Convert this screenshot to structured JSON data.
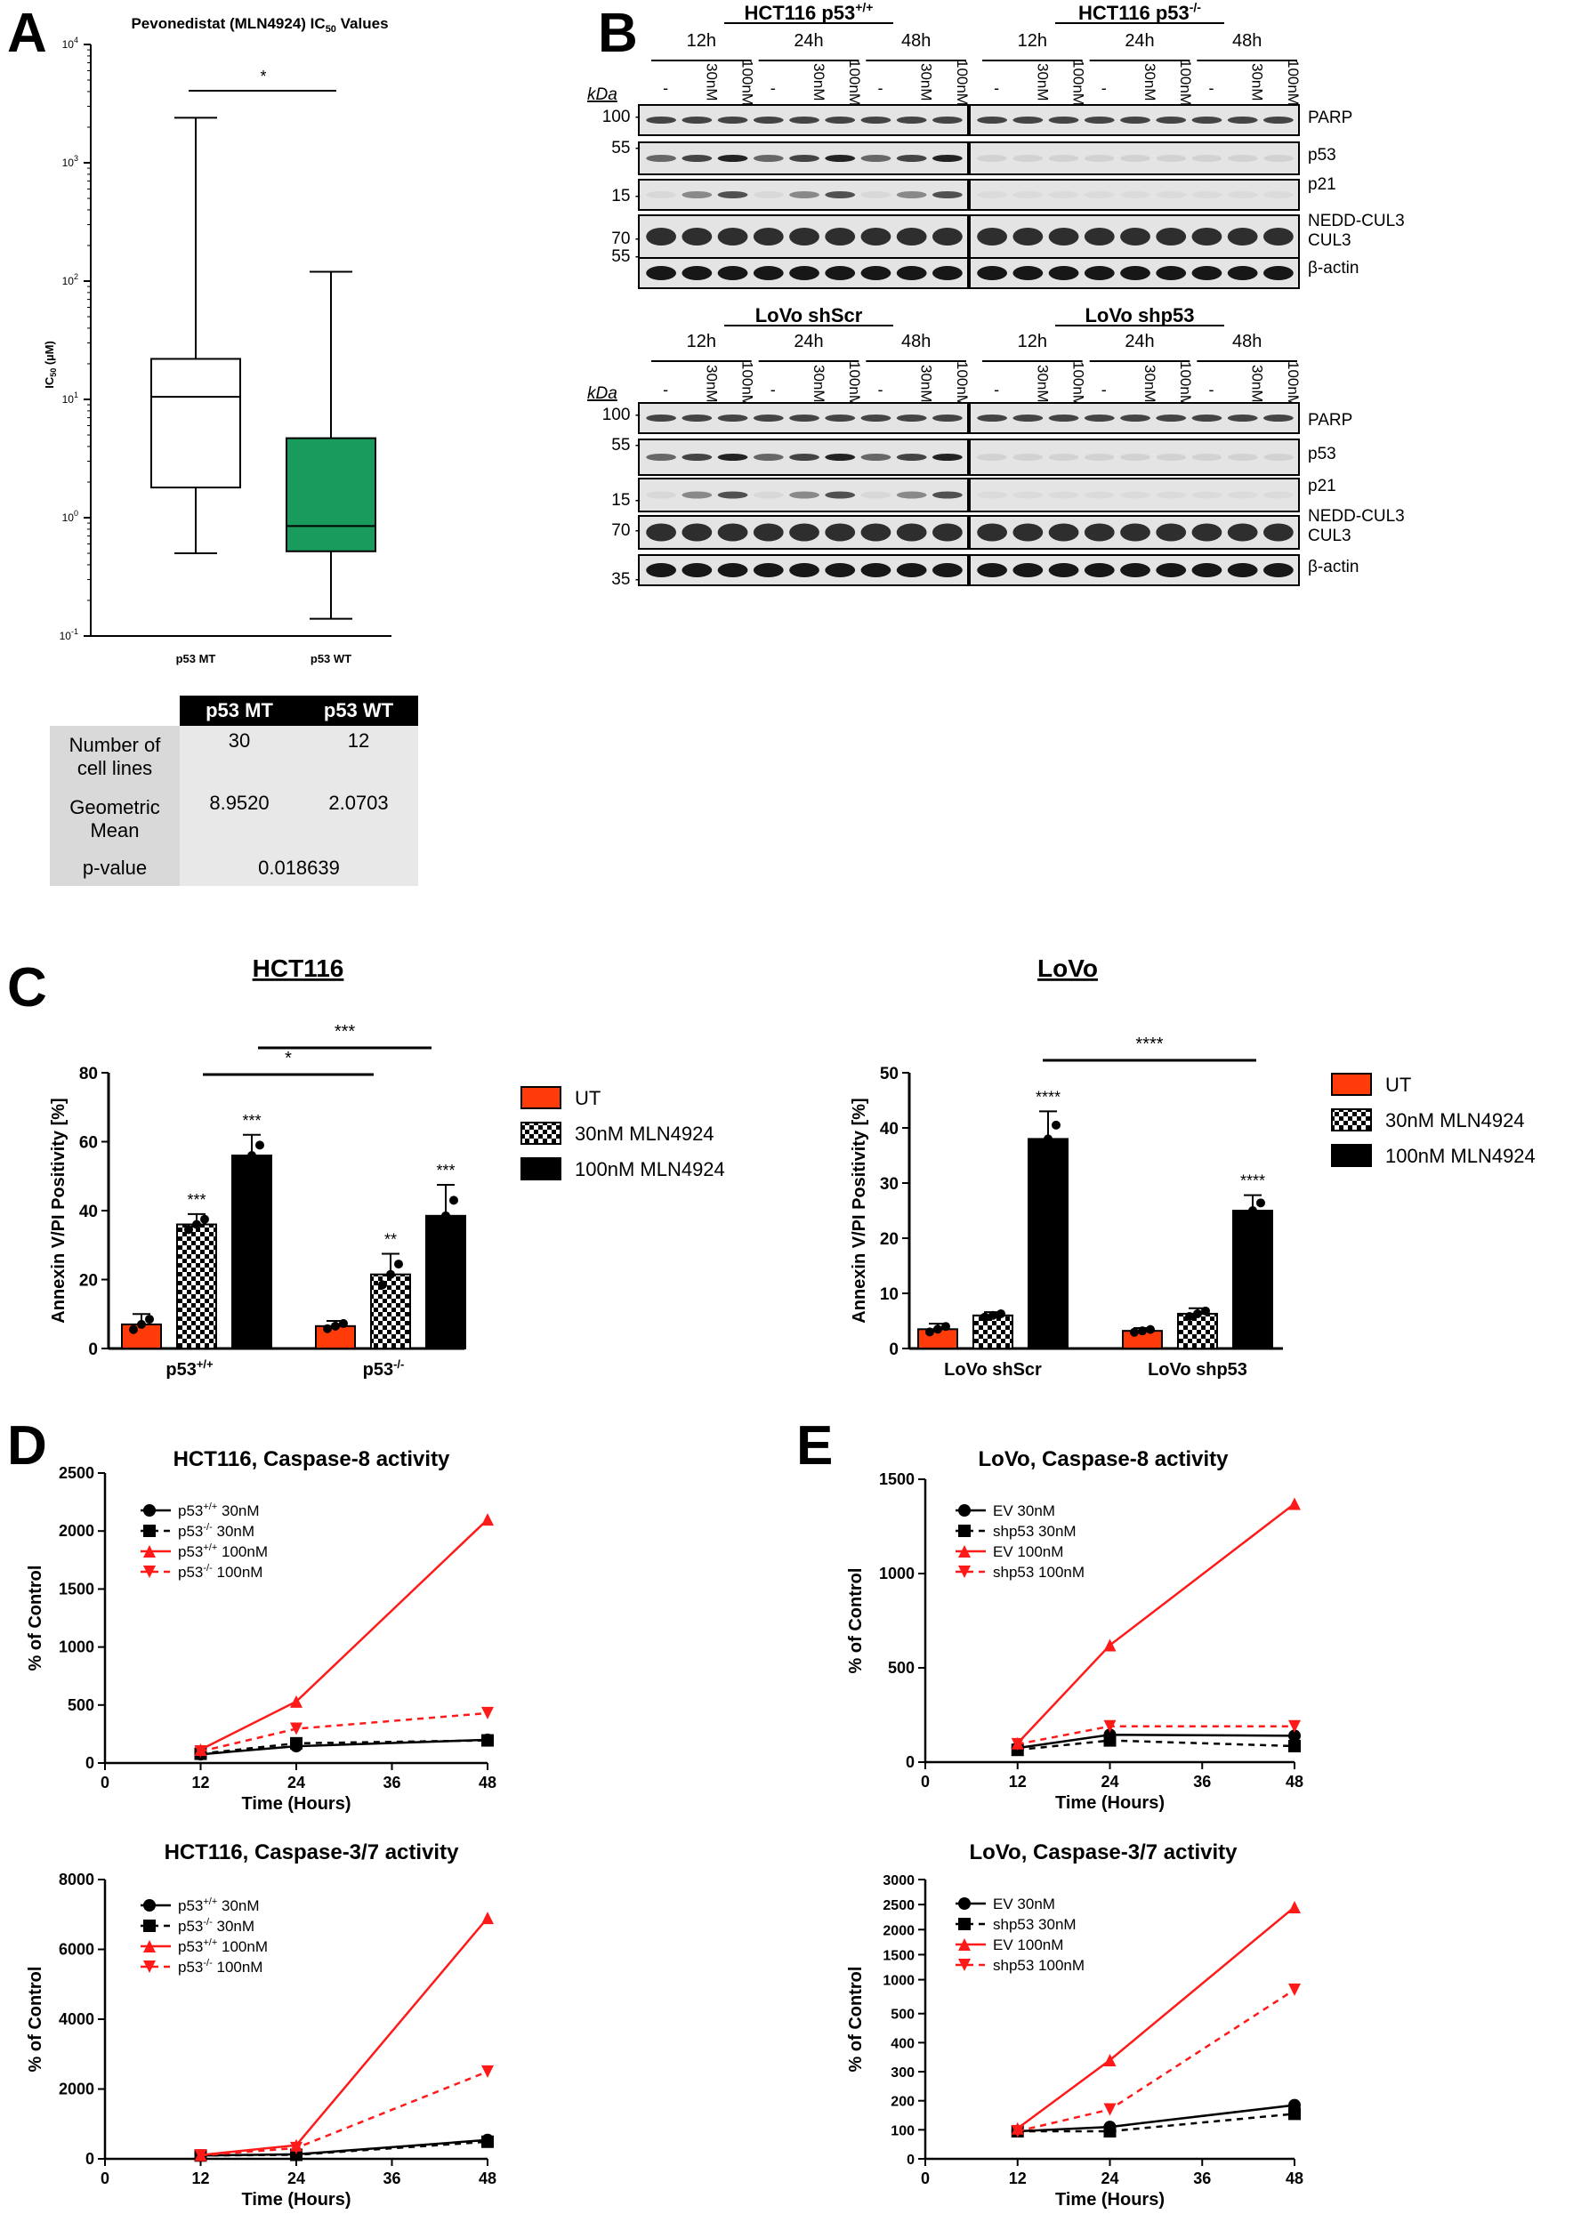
{
  "panels": {
    "A": "A",
    "B": "B",
    "C": "C",
    "D": "D",
    "E": "E"
  },
  "panelA": {
    "title": "Pevonedistat (MLN4924) IC",
    "title_sub": "50",
    "title_tail": " Values",
    "ylabel": "IC",
    "ylabel_sub": "50",
    "ylabel_tail": " (µM)",
    "sig": "*",
    "y_ticks": [
      "10",
      "10",
      "10",
      "10",
      "10",
      "10"
    ],
    "y_exps": [
      "4",
      "3",
      "2",
      "1",
      "0",
      "-1"
    ],
    "groups": [
      "p53 MT",
      "p53 WT"
    ],
    "boxes": [
      {
        "name": "p53 MT",
        "min": 0.5,
        "q1": 1.8,
        "median": 10.5,
        "q3": 22,
        "max": 2400,
        "color": "#ffffff"
      },
      {
        "name": "p53 WT",
        "min": 0.14,
        "q1": 0.52,
        "median": 0.85,
        "q3": 4.7,
        "max": 120,
        "color": "#1a9b5e"
      }
    ],
    "table": {
      "headers": [
        "p53 MT",
        "p53 WT"
      ],
      "rows": [
        {
          "label": "Number of cell lines",
          "mt": "30",
          "wt": "12"
        },
        {
          "label": "Geometric Mean",
          "mt": "8.9520",
          "wt": "2.0703"
        }
      ],
      "pvalue_label": "p-value",
      "pvalue": "0.018639"
    }
  },
  "panelB": {
    "kda": "kDa",
    "dash": "-",
    "lines": [
      {
        "left": "HCT116 p53",
        "left_sup": "+/+",
        "right": "HCT116 p53",
        "right_sup": "-/-",
        "markers": [
          "100 -",
          "55 -",
          "15 -",
          "70 -",
          "55 -"
        ],
        "proteins": [
          "PARP",
          "p53",
          "p21",
          "NEDD-CUL3",
          "CUL3",
          "β-actin"
        ]
      },
      {
        "left": "LoVo shScr",
        "left_sup": "",
        "right": "LoVo shp53",
        "right_sup": "",
        "markers": [
          "100 -",
          "55 -",
          "15 -",
          "70 -",
          "35 -"
        ],
        "proteins": [
          "PARP",
          "p53",
          "p21",
          "NEDD-CUL3",
          "CUL3",
          "β-actin"
        ]
      }
    ],
    "timepoints": [
      "12h",
      "24h",
      "48h"
    ],
    "doses": [
      "30nM",
      "100nM"
    ]
  },
  "panelC": {
    "hct": {
      "title": "HCT116",
      "ylabel": "Annexin V/PI Positivity [%]",
      "yticks": [
        "0",
        "20",
        "40",
        "60",
        "80"
      ],
      "groups": [
        "p53",
        "p53"
      ],
      "group_sups": [
        "+/+",
        "-/-"
      ],
      "values": [
        [
          7,
          36,
          56
        ],
        [
          6.5,
          21.5,
          38.5
        ]
      ],
      "errors": [
        [
          3,
          3,
          6
        ],
        [
          1.5,
          6,
          9
        ]
      ],
      "stars": [
        [
          "",
          "***",
          "***"
        ],
        [
          "",
          "**",
          "***"
        ]
      ],
      "brackets": [
        "*",
        "***"
      ]
    },
    "lovo": {
      "title": "LoVo",
      "ylabel": "Annexin V/PI Positivity [%]",
      "yticks": [
        "0",
        "10",
        "20",
        "30",
        "40",
        "50"
      ],
      "groups": [
        "LoVo shScr",
        "LoVo shp53"
      ],
      "values": [
        [
          3.5,
          6,
          38
        ],
        [
          3.2,
          6.3,
          25
        ]
      ],
      "errors": [
        [
          1,
          0.6,
          5
        ],
        [
          0.5,
          1,
          2.8
        ]
      ],
      "stars": [
        [
          "",
          "",
          "****"
        ],
        [
          "",
          "",
          "****"
        ]
      ],
      "brackets": [
        "****"
      ]
    },
    "legend": [
      "UT",
      "30nM MLN4924",
      "100nM MLN4924"
    ]
  },
  "chart_data": [
    {
      "type": "line",
      "title": "HCT116, Caspase-8 activity",
      "xlabel": "Time (Hours)",
      "ylabel": "% of Control",
      "x": [
        12,
        24,
        48
      ],
      "xticks": [
        "0",
        "12",
        "24",
        "36",
        "48"
      ],
      "yticks": [
        "0",
        "500",
        "1000",
        "1500",
        "2000",
        "2500"
      ],
      "ylim": [
        0,
        2500
      ],
      "series": [
        {
          "name": "p53 30nM",
          "sup": "+/+",
          "values": [
            75,
            145,
            200
          ]
        },
        {
          "name": "p53 30nM",
          "sup": "-/-",
          "values": [
            80,
            170,
            195
          ]
        },
        {
          "name": "p53 100nM",
          "sup": "+/+",
          "values": [
            115,
            530,
            2100
          ]
        },
        {
          "name": "p53 100nM",
          "sup": "-/-",
          "values": [
            100,
            295,
            430
          ]
        }
      ]
    },
    {
      "type": "line",
      "title": "HCT116, Caspase-3/7 activity",
      "xlabel": "Time (Hours)",
      "ylabel": "% of Control",
      "x": [
        12,
        24,
        48
      ],
      "xticks": [
        "0",
        "12",
        "24",
        "36",
        "48"
      ],
      "yticks": [
        "0",
        "2000",
        "4000",
        "6000",
        "8000"
      ],
      "ylim": [
        0,
        8000
      ],
      "series": [
        {
          "name": "p53 30nM",
          "sup": "+/+",
          "values": [
            95,
            130,
            540
          ]
        },
        {
          "name": "p53 30nM",
          "sup": "-/-",
          "values": [
            95,
            115,
            490
          ]
        },
        {
          "name": "p53 100nM",
          "sup": "+/+",
          "values": [
            110,
            390,
            6900
          ]
        },
        {
          "name": "p53 100nM",
          "sup": "-/-",
          "values": [
            100,
            310,
            2500
          ]
        }
      ]
    },
    {
      "type": "line",
      "title": "LoVo, Caspase-8 activity",
      "xlabel": "Time (Hours)",
      "ylabel": "% of Control",
      "x": [
        12,
        24,
        48
      ],
      "xticks": [
        "0",
        "12",
        "24",
        "36",
        "48"
      ],
      "yticks": [
        "0",
        "500",
        "1000",
        "1500"
      ],
      "ylim": [
        0,
        1500
      ],
      "series": [
        {
          "name": "EV 30nM",
          "sup": "",
          "values": [
            75,
            145,
            140
          ]
        },
        {
          "name": "shp53 30nM",
          "sup": "",
          "values": [
            65,
            115,
            85
          ]
        },
        {
          "name": "EV 100nM",
          "sup": "",
          "values": [
            100,
            620,
            1370
          ]
        },
        {
          "name": "shp53 100nM",
          "sup": "",
          "values": [
            95,
            190,
            190
          ]
        }
      ]
    },
    {
      "type": "line",
      "title": "LoVo, Caspase-3/7 activity",
      "xlabel": "Time (Hours)",
      "ylabel": "% of Control",
      "x": [
        12,
        24,
        48
      ],
      "xticks": [
        "0",
        "12",
        "24",
        "36",
        "48"
      ],
      "yticks": [
        "0",
        "100",
        "200",
        "300",
        "400",
        "500",
        "1000",
        "1500",
        "2000",
        "2500",
        "3000"
      ],
      "ylim": [
        0,
        3000
      ],
      "broken_axis": true,
      "series": [
        {
          "name": "EV 30nM",
          "sup": "",
          "values": [
            95,
            110,
            185
          ]
        },
        {
          "name": "shp53 30nM",
          "sup": "",
          "values": [
            95,
            95,
            155
          ]
        },
        {
          "name": "EV 100nM",
          "sup": "",
          "values": [
            105,
            340,
            2450
          ]
        },
        {
          "name": "shp53 100nM",
          "sup": "",
          "values": [
            95,
            170,
            800
          ]
        }
      ]
    }
  ]
}
